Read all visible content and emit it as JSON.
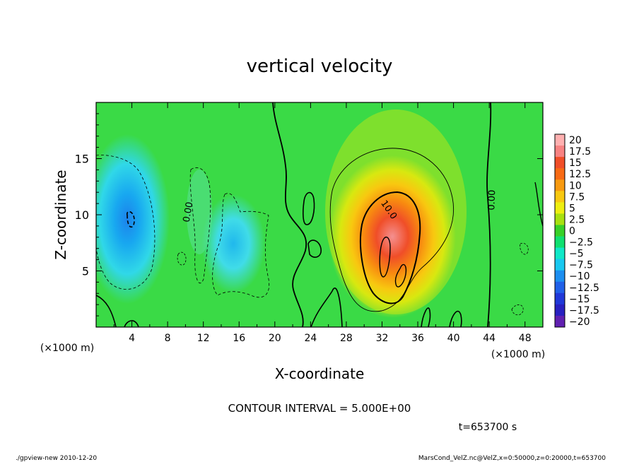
{
  "chart_data": {
    "type": "heatmap",
    "title": "vertical velocity",
    "xlabel": "X-coordinate",
    "ylabel": "Z-coordinate",
    "x_unit_left": "(×1000 m)",
    "x_unit_right": "(×1000 m)",
    "xlim": [
      0,
      50
    ],
    "ylim": [
      0,
      20
    ],
    "x_ticks": [
      4,
      8,
      12,
      16,
      20,
      24,
      28,
      32,
      36,
      40,
      44,
      48
    ],
    "y_ticks": [
      5,
      10,
      15
    ],
    "contour_interval_text": "CONTOUR INTERVAL = 5.000E+00",
    "time_text": "t=653700 s",
    "contour_labels": [
      "0.00",
      "10.0",
      "0.00"
    ],
    "colorbar": {
      "labels": [
        "20",
        "17.5",
        "15",
        "12.5",
        "10",
        "7.5",
        "5",
        "2.5",
        "0",
        "-2.5",
        "-5",
        "-7.5",
        "-10",
        "-12.5",
        "-15",
        "-17.5",
        "-20"
      ],
      "colors": [
        "#ffb0b0",
        "#f88282",
        "#f04e28",
        "#f86a14",
        "#f89a10",
        "#f8c810",
        "#eeee10",
        "#a8e010",
        "#38d028",
        "#10e070",
        "#10e8c8",
        "#18c8f0",
        "#1c8ef0",
        "#2060e8",
        "#2038d8",
        "#2820c0",
        "#6020b0"
      ]
    },
    "features": [
      {
        "kind": "updraft",
        "x": 32.5,
        "z": 8.0,
        "max": 17.5
      },
      {
        "kind": "downdraft",
        "x": 4.0,
        "z": 9.0,
        "min": -12.0
      },
      {
        "kind": "downdraft",
        "x": 15.0,
        "z": 7.0,
        "min": -7.5
      }
    ]
  },
  "footer": {
    "left": "./gpview-new  2010-12-20",
    "right": "MarsCond_VelZ.nc@VelZ,x=0:50000,z=0:20000,t=653700"
  }
}
